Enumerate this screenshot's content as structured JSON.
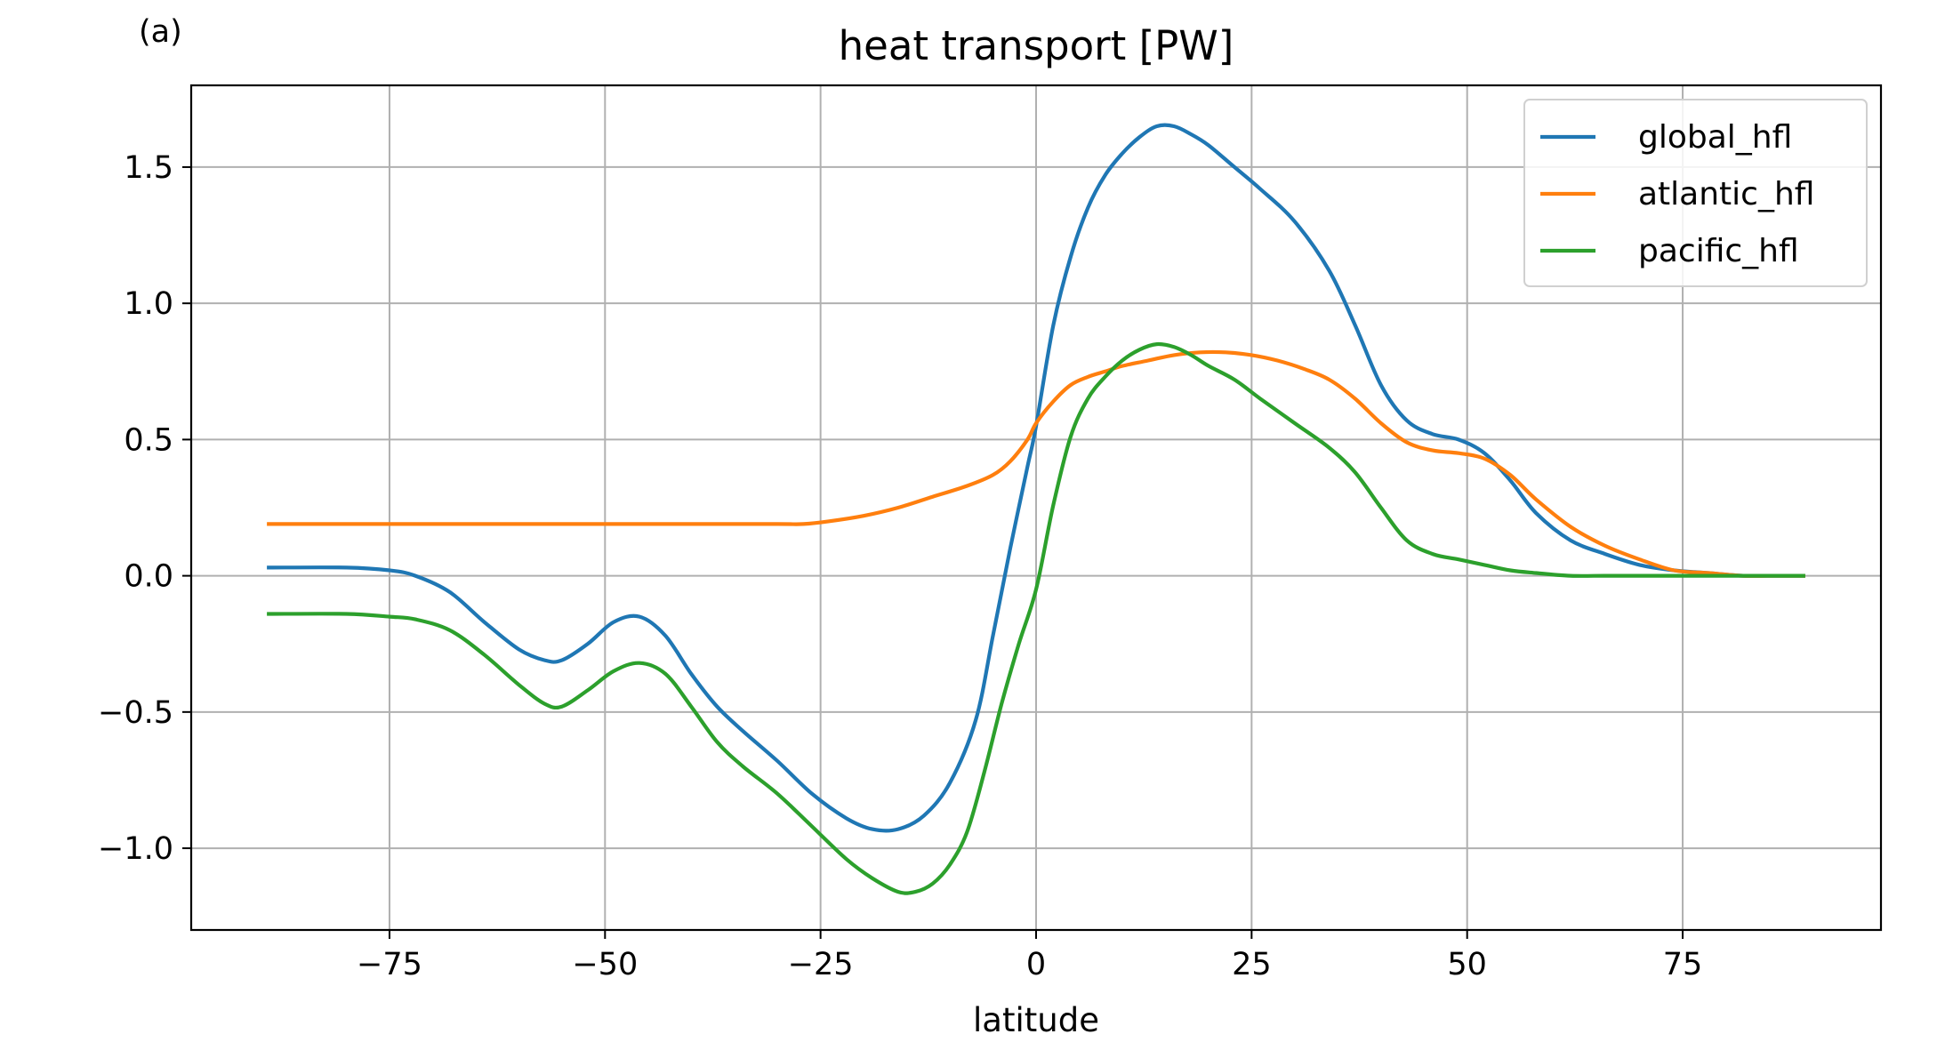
{
  "panel_label": "(a)",
  "chart_data": {
    "type": "line",
    "title": "heat transport [PW]",
    "xlabel": "latitude",
    "ylabel": "",
    "xlim": [
      -98,
      98
    ],
    "ylim": [
      -1.3,
      1.8
    ],
    "xticks": [
      -75,
      -50,
      -25,
      0,
      25,
      50,
      75
    ],
    "xtick_labels": [
      "−75",
      "−50",
      "−25",
      "0",
      "25",
      "50",
      "75"
    ],
    "yticks": [
      -1.0,
      -0.5,
      0.0,
      0.5,
      1.0,
      1.5
    ],
    "ytick_labels": [
      "−1.0",
      "−0.5",
      "0.0",
      "0.5",
      "1.0",
      "1.5"
    ],
    "grid": true,
    "legend_position": "top-right",
    "series": [
      {
        "name": "global_hfl",
        "color": "#1f77b4",
        "x": [
          -89,
          -80,
          -75,
          -72,
          -68,
          -64,
          -60,
          -57,
          -55,
          -52,
          -49,
          -46,
          -43,
          -40,
          -37,
          -34,
          -30,
          -26,
          -22,
          -19,
          -16,
          -13,
          -10,
          -7,
          -5,
          -3,
          -1,
          0,
          2,
          4,
          6,
          8,
          10,
          12,
          14,
          16,
          18,
          20,
          23,
          26,
          30,
          34,
          37,
          40,
          43,
          46,
          49,
          52,
          55,
          58,
          62,
          66,
          70,
          74,
          78,
          82,
          86,
          89
        ],
        "y": [
          0.03,
          0.03,
          0.02,
          0.0,
          -0.06,
          -0.17,
          -0.27,
          -0.31,
          -0.31,
          -0.25,
          -0.17,
          -0.15,
          -0.22,
          -0.36,
          -0.48,
          -0.57,
          -0.68,
          -0.8,
          -0.89,
          -0.93,
          -0.93,
          -0.88,
          -0.76,
          -0.53,
          -0.22,
          0.1,
          0.4,
          0.55,
          0.92,
          1.17,
          1.35,
          1.47,
          1.55,
          1.61,
          1.65,
          1.65,
          1.62,
          1.58,
          1.5,
          1.42,
          1.3,
          1.12,
          0.92,
          0.7,
          0.57,
          0.52,
          0.5,
          0.45,
          0.35,
          0.23,
          0.13,
          0.08,
          0.04,
          0.02,
          0.01,
          0.0,
          0.0,
          0.0
        ]
      },
      {
        "name": "atlantic_hfl",
        "color": "#ff7f0e",
        "x": [
          -89,
          -80,
          -70,
          -60,
          -50,
          -40,
          -30,
          -27,
          -24,
          -20,
          -16,
          -12,
          -8,
          -5,
          -3,
          -1,
          0,
          2,
          4,
          6,
          8,
          10,
          13,
          16,
          19,
          22,
          25,
          28,
          31,
          34,
          37,
          40,
          43,
          46,
          49,
          52,
          55,
          58,
          62,
          66,
          70,
          74,
          78,
          82,
          86,
          89
        ],
        "y": [
          0.19,
          0.19,
          0.19,
          0.19,
          0.19,
          0.19,
          0.19,
          0.19,
          0.2,
          0.22,
          0.25,
          0.29,
          0.33,
          0.37,
          0.42,
          0.5,
          0.56,
          0.64,
          0.7,
          0.73,
          0.75,
          0.77,
          0.79,
          0.81,
          0.82,
          0.82,
          0.81,
          0.79,
          0.76,
          0.72,
          0.65,
          0.56,
          0.49,
          0.46,
          0.45,
          0.43,
          0.37,
          0.28,
          0.18,
          0.11,
          0.06,
          0.02,
          0.01,
          0.0,
          0.0,
          0.0
        ]
      },
      {
        "name": "pacific_hfl",
        "color": "#2ca02c",
        "x": [
          -89,
          -80,
          -75,
          -72,
          -68,
          -64,
          -60,
          -57,
          -55,
          -52,
          -49,
          -46,
          -43,
          -40,
          -37,
          -34,
          -30,
          -26,
          -22,
          -19,
          -16,
          -14,
          -12,
          -10,
          -8,
          -6,
          -4,
          -2,
          0,
          2,
          4,
          6,
          8,
          10,
          12,
          14,
          16,
          18,
          20,
          23,
          26,
          30,
          34,
          37,
          40,
          43,
          46,
          49,
          52,
          55,
          58,
          62,
          66,
          70,
          74,
          78,
          82,
          86,
          89
        ],
        "y": [
          -0.14,
          -0.14,
          -0.15,
          -0.16,
          -0.2,
          -0.29,
          -0.4,
          -0.47,
          -0.48,
          -0.42,
          -0.35,
          -0.32,
          -0.36,
          -0.48,
          -0.61,
          -0.7,
          -0.8,
          -0.92,
          -1.04,
          -1.11,
          -1.16,
          -1.16,
          -1.13,
          -1.06,
          -0.94,
          -0.72,
          -0.47,
          -0.25,
          -0.05,
          0.26,
          0.51,
          0.65,
          0.73,
          0.79,
          0.83,
          0.85,
          0.84,
          0.81,
          0.77,
          0.72,
          0.65,
          0.56,
          0.47,
          0.38,
          0.25,
          0.13,
          0.08,
          0.06,
          0.04,
          0.02,
          0.01,
          0.0,
          0.0,
          0.0,
          0.0,
          0.0,
          0.0,
          0.0,
          0.0
        ]
      }
    ]
  }
}
